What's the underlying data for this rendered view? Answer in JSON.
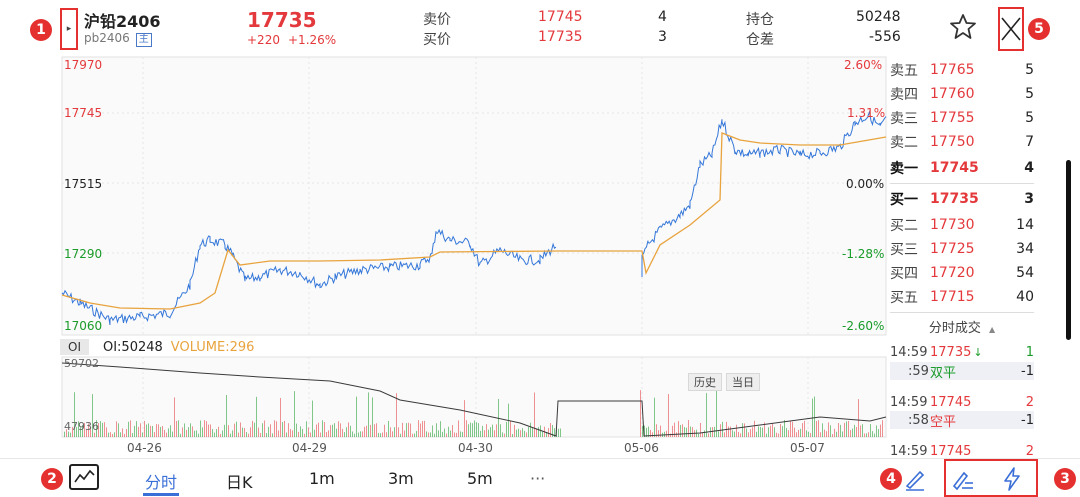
{
  "header": {
    "name": "沪铅2406",
    "code": "pb2406",
    "main_tag": "主",
    "last_price": "17735",
    "change": "+220",
    "change_pct": "+1.26%",
    "ask_label": "卖价",
    "ask_price": "17745",
    "ask_volume": "4",
    "bid_label": "买价",
    "bid_price": "17735",
    "bid_volume": "3",
    "oi_label": "持仓",
    "oi_value": "50248",
    "oi_diff_label": "仓差",
    "oi_diff_value": "-556"
  },
  "badges": [
    "1",
    "2",
    "3",
    "4",
    "5"
  ],
  "chart": {
    "y_labels_left": [
      "17970",
      "17745",
      "17515",
      "17290",
      "17060"
    ],
    "y_labels_right": [
      "2.60%",
      "1.31%",
      "0.00%",
      "-1.28%",
      "-2.60%"
    ],
    "history_btn": "历史",
    "today_btn": "当日",
    "oi_tab": "OI",
    "oi_text": "OI:50248",
    "volume_text": "VOLUME:296",
    "sub_y_top": "59702",
    "sub_y_bottom": "47936",
    "dates": [
      "04-26",
      "04-29",
      "04-30",
      "05-06",
      "05-07"
    ],
    "colors": {
      "price": "#3477d9",
      "avg": "#e8a33d",
      "oi": "#3a3a3a",
      "up": "#e4393c",
      "down": "#1a9b2a"
    }
  },
  "chart_data": {
    "type": "line",
    "x": [
      "04-26",
      "04-29",
      "04-30",
      "05-06",
      "05-07"
    ],
    "ylim": [
      17060,
      17970
    ],
    "series": []
  },
  "book": {
    "asks": [
      {
        "level": "卖五",
        "price": "17765",
        "volume": "5"
      },
      {
        "level": "卖四",
        "price": "17760",
        "volume": "5"
      },
      {
        "level": "卖三",
        "price": "17755",
        "volume": "5"
      },
      {
        "level": "卖二",
        "price": "17750",
        "volume": "7"
      },
      {
        "level": "卖一",
        "price": "17745",
        "volume": "4"
      }
    ],
    "bids": [
      {
        "level": "买一",
        "price": "17735",
        "volume": "3"
      },
      {
        "level": "买二",
        "price": "17730",
        "volume": "14"
      },
      {
        "level": "买三",
        "price": "17725",
        "volume": "34"
      },
      {
        "level": "买四",
        "price": "17720",
        "volume": "54"
      },
      {
        "level": "买五",
        "price": "17715",
        "volume": "40"
      }
    ],
    "ticks_title": "分时成交",
    "ticks": [
      {
        "time": "14:59",
        "price": "17735",
        "arrow": "↓",
        "vol": "1",
        "sub_time": ":59",
        "sub_kind": "双平",
        "sub_vol": "-1"
      },
      {
        "time": "14:59",
        "price": "17745",
        "arrow": "",
        "vol": "2",
        "sub_time": ":58",
        "sub_kind": "空平",
        "sub_vol": "-1"
      },
      {
        "time": "14:59",
        "price": "17745",
        "arrow": "",
        "vol": "2"
      }
    ]
  },
  "toolbar": {
    "tabs": [
      "分时",
      "日K",
      "1m",
      "3m",
      "5m",
      "···"
    ]
  }
}
